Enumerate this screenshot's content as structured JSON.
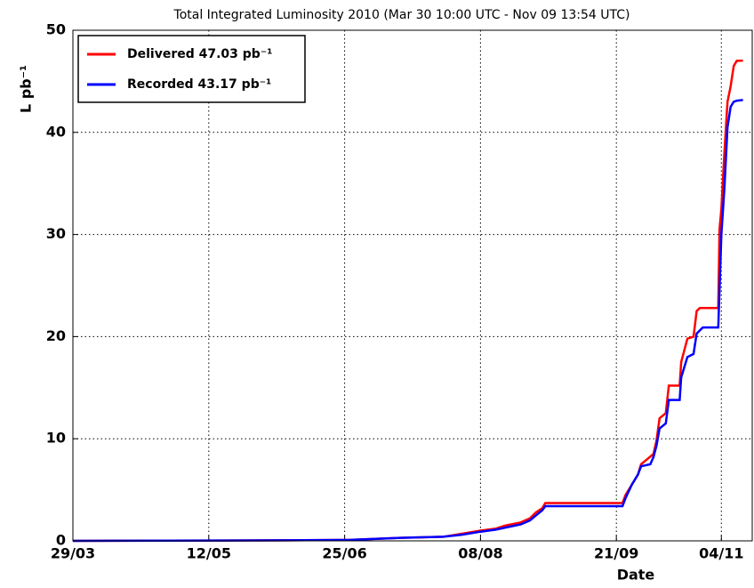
{
  "chart_data": {
    "type": "line",
    "title": "Total Integrated Luminosity 2010 (Mar 30 10:00 UTC - Nov 09 13:54 UTC)",
    "x_label": "Date",
    "y_label": "L pb⁻¹",
    "xlim": [
      0,
      220
    ],
    "ylim": [
      0,
      50
    ],
    "xticks": [
      {
        "value": 0,
        "label": "29/03"
      },
      {
        "value": 44,
        "label": "12/05"
      },
      {
        "value": 88,
        "label": "25/06"
      },
      {
        "value": 132,
        "label": "08/08"
      },
      {
        "value": 176,
        "label": "21/09"
      },
      {
        "value": 210,
        "label": "04/11"
      }
    ],
    "yticks": [
      0,
      10,
      20,
      30,
      40,
      50
    ],
    "grid": true,
    "legend": "upper left",
    "series": [
      {
        "name": "Delivered 47.03 pb⁻¹",
        "color": "#ff0000",
        "x": [
          0,
          70,
          90,
          106,
          120,
          126,
          132,
          137,
          140,
          145,
          148,
          150,
          152,
          153,
          178,
          179,
          181,
          183,
          184,
          186,
          188,
          189,
          190,
          192,
          193,
          196.5,
          197,
          199,
          201,
          202,
          203,
          209,
          209.4,
          210,
          211,
          212,
          213,
          214,
          215,
          217
        ],
        "values": [
          0,
          0.05,
          0.1,
          0.3,
          0.4,
          0.7,
          1.0,
          1.2,
          1.5,
          1.8,
          2.2,
          2.8,
          3.2,
          3.7,
          3.7,
          4.5,
          5.5,
          6.5,
          7.5,
          8.0,
          8.5,
          9.8,
          12,
          12.5,
          15.2,
          15.2,
          17.5,
          19.8,
          20,
          22.5,
          22.8,
          22.8,
          30.5,
          32.5,
          38,
          43,
          44.5,
          46.5,
          47,
          47.03
        ]
      },
      {
        "name": "Recorded 43.17 pb⁻¹",
        "color": "#0000ff",
        "x": [
          0,
          70,
          90,
          106,
          120,
          126,
          132,
          137,
          140,
          145,
          148,
          150,
          152,
          153,
          178,
          179,
          181,
          183,
          184,
          187,
          188,
          189,
          190,
          192,
          193,
          196.5,
          197,
          199,
          201,
          202,
          204,
          209,
          209.4,
          210,
          211,
          212,
          213,
          214,
          215,
          217
        ],
        "values": [
          0,
          0.05,
          0.1,
          0.3,
          0.4,
          0.6,
          0.9,
          1.1,
          1.3,
          1.6,
          2.0,
          2.5,
          3.0,
          3.4,
          3.4,
          4.2,
          5.5,
          6.5,
          7.3,
          7.5,
          8.2,
          9.3,
          11,
          11.5,
          13.8,
          13.8,
          16,
          18,
          18.3,
          20.3,
          20.9,
          20.9,
          24.5,
          30,
          34.5,
          40.5,
          42.5,
          43,
          43.1,
          43.17
        ]
      }
    ]
  }
}
